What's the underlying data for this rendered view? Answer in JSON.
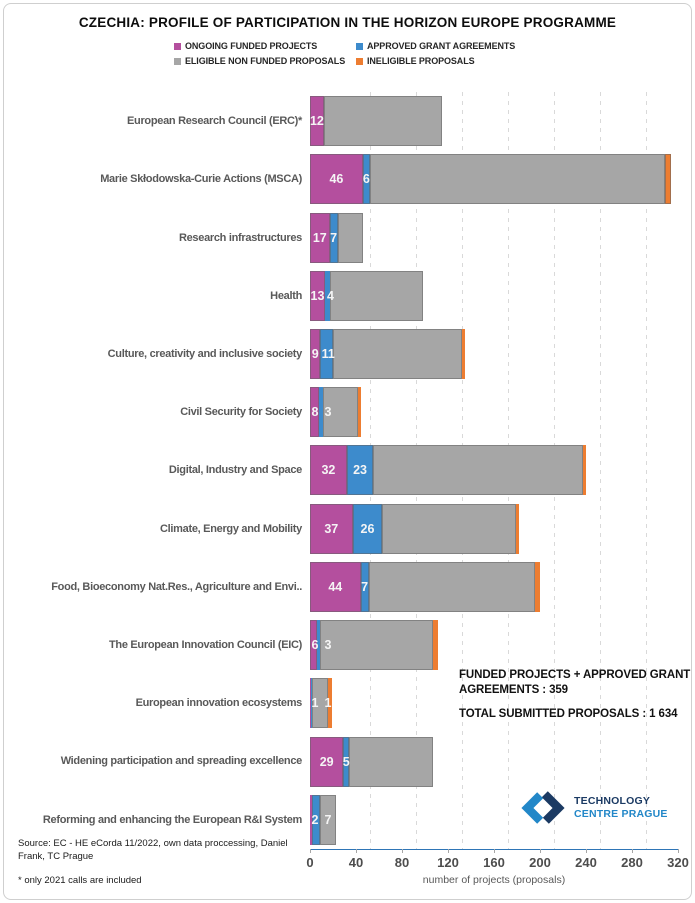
{
  "title": "CZECHIA: PROFILE OF PARTICIPATION IN THE HORIZON EUROPE PROGRAMME",
  "legend": [
    {
      "label": "ONGOING FUNDED PROJECTS",
      "color": "#b44f9e"
    },
    {
      "label": "APPROVED GRANT AGREEMENTS",
      "color": "#3d8bcc"
    },
    {
      "label": "ELIGIBLE NON FUNDED PROPOSALS",
      "color": "#a6a6a6"
    },
    {
      "label": "INELIGIBLE PROPOSALS",
      "color": "#ed7d31"
    }
  ],
  "chart_data": {
    "type": "bar",
    "orientation": "horizontal",
    "stacked": true,
    "title": "CZECHIA: PROFILE OF PARTICIPATION IN THE HORIZON EUROPE PROGRAMME",
    "categories": [
      "European Research Council (ERC)*",
      "Marie Skłodowska-Curie Actions (MSCA)",
      "Research infrastructures",
      "Health",
      "Culture, creativity and inclusive society",
      "Civil Security for Society",
      "Digital, Industry and Space",
      "Climate, Energy and Mobility",
      "Food, Bioeconomy Nat.Res., Agriculture and Envi..",
      "The European Innovation Council (EIC)",
      "European innovation ecosystems",
      "Widening participation and spreading excellence",
      "Reforming and enhancing the European R&I System"
    ],
    "series": [
      {
        "name": "ONGOING FUNDED PROJECTS",
        "color": "#b44f9e",
        "values": [
          12,
          46,
          17,
          13,
          9,
          8,
          32,
          37,
          44,
          6,
          1,
          29,
          2
        ]
      },
      {
        "name": "APPROVED GRANT AGREEMENTS",
        "color": "#3d8bcc",
        "values": [
          0,
          6,
          7,
          4,
          11,
          3,
          23,
          26,
          7,
          3,
          1,
          5,
          7
        ]
      },
      {
        "name": "ELIGIBLE NON FUNDED PROPOSALS",
        "color": "#a6a6a6",
        "values": [
          103,
          257,
          22,
          81,
          112,
          31,
          182,
          116,
          145,
          98,
          14,
          73,
          14
        ]
      },
      {
        "name": "INELIGIBLE PROPOSALS",
        "color": "#ed7d31",
        "values": [
          0,
          5,
          0,
          0,
          3,
          2,
          3,
          3,
          4,
          4,
          3,
          0,
          0
        ]
      }
    ],
    "xlabel": "number of projects (proposals)",
    "xlim": [
      0,
      320
    ],
    "xticks": [
      0,
      40,
      80,
      120,
      160,
      200,
      240,
      280,
      320
    ],
    "gridlines": "dashed vertical every 40",
    "legend_position": "top",
    "axis_line_color": "#2e75b6"
  },
  "annotation": {
    "line1": "FUNDED PROJECTS + APPROVED GRANT AGREEMENTS : 359",
    "line2": "TOTAL SUBMITTED PROPOSALS : 1 634"
  },
  "footnotes": {
    "source": "Source: EC - HE eCorda 11/2022, own data proccessing, Daniel Frank, TC Prague",
    "note": "* only 2021 calls are included"
  },
  "logo": {
    "line1": "TECHNOLOGY",
    "line2": "CENTRE PRAGUE",
    "dark_color": "#1b3a63",
    "light_color": "#2287c8"
  }
}
